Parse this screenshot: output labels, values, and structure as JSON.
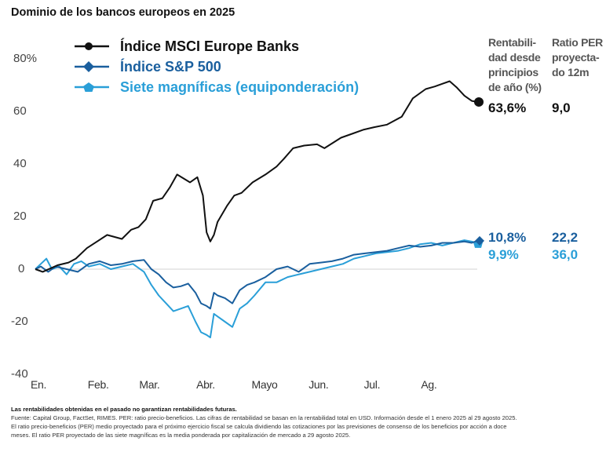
{
  "title": "Dominio de los bancos europeos en 2025",
  "colors": {
    "msci": "#111111",
    "sp500": "#1a5f9e",
    "mag7": "#2a9fd8",
    "zero_line": "#e2e2e2"
  },
  "legend": [
    {
      "label": "Índice MSCI Europe Banks",
      "marker": "circle-icon",
      "series": "msci"
    },
    {
      "label": "Índice S&P 500",
      "marker": "diamond-icon",
      "series": "sp500"
    },
    {
      "label": "Siete magníficas (equiponderación)",
      "marker": "pentagon-icon",
      "series": "mag7"
    }
  ],
  "table": {
    "col1_header": "Rentabili-\ndad desde\nprincipios\nde año (%)",
    "col2_header": "Ratio PER\nproyecta-\ndo 12m",
    "rows": [
      {
        "series": "msci",
        "ytd": "63,6%",
        "per": "9,0"
      },
      {
        "series": "sp500",
        "ytd": "10,8%",
        "per": "22,2"
      },
      {
        "series": "mag7",
        "ytd": "9,9%",
        "per": "36,0"
      }
    ]
  },
  "footnote": {
    "bold": "Las rentabilidades obtenidas en el pasado no garantizan rentabilidades futuras.",
    "line1": "Fuente: Capital Group, FactSet, RIMES. PER: ratio precio-beneficios. Las cifras de rentabilidad se basan en la rentabilidad total en USD. Información desde el 1 enero 2025 al 29 agosto 2025.",
    "line2": "El ratio precio-beneficios (PER) medio proyectado para el próximo ejercicio fiscal se calcula dividiendo las cotizaciones por las previsiones de consenso de los beneficios por acción a doce",
    "line3": "meses. El ratio PER proyectado de las siete magníficas es la media ponderada por capitalización de mercado a 29 agosto 2025."
  },
  "chart_data": {
    "type": "line",
    "title": "Dominio de los bancos europeos en 2025",
    "xlabel": "",
    "ylabel": "",
    "x_unit": "day of year 2025 (1 = 1 Jan, 241 = 29 Aug)",
    "xlim": [
      1,
      241
    ],
    "ylim": [
      -40,
      80
    ],
    "yticks": [
      80,
      60,
      40,
      20,
      0,
      -20,
      -40
    ],
    "ytick_labels": [
      "80%",
      "60",
      "40",
      "20",
      "0",
      "-20",
      "-40"
    ],
    "xticks": [
      1,
      32,
      60,
      91,
      121,
      152,
      182,
      213
    ],
    "xtick_labels": [
      "En.",
      "Feb.",
      "Mar.",
      "Abr.",
      "Mayo",
      "Jun.",
      "Jul.",
      "Ag."
    ],
    "grid": "zero-line only",
    "legend_position": "top-left",
    "series": [
      {
        "name": "Índice MSCI Europe Banks",
        "key": "msci",
        "end_value": 63.6,
        "x": [
          1,
          5,
          13,
          19,
          23,
          29,
          40,
          48,
          53,
          57,
          61,
          65,
          70,
          74,
          78,
          85,
          89,
          92,
          94,
          96,
          98,
          100,
          105,
          109,
          113,
          119,
          126,
          132,
          136,
          141,
          147,
          154,
          158,
          167,
          173,
          179,
          185,
          192,
          196,
          200,
          206,
          213,
          218,
          222,
          226,
          230,
          234,
          238,
          241
        ],
        "y": [
          0,
          -1,
          1.5,
          2.5,
          4,
          8,
          13,
          11.5,
          15,
          16,
          19,
          26,
          27,
          31,
          36,
          33,
          35,
          28,
          14,
          10.5,
          13,
          18,
          24,
          28,
          29,
          33,
          36,
          39,
          42,
          46,
          47,
          47.5,
          46,
          50,
          51.5,
          53,
          54,
          55,
          56.5,
          58,
          65,
          68.5,
          69.5,
          70.5,
          71.5,
          69,
          66,
          64,
          63.6
        ]
      },
      {
        "name": "Índice S&P 500",
        "key": "sp500",
        "end_value": 10.8,
        "x": [
          1,
          4,
          8,
          12,
          18,
          24,
          30,
          36,
          42,
          48,
          54,
          60,
          64,
          68,
          72,
          76,
          80,
          84,
          88,
          91,
          94,
          96,
          98,
          100,
          104,
          108,
          112,
          116,
          120,
          126,
          132,
          138,
          144,
          150,
          156,
          162,
          168,
          174,
          180,
          186,
          192,
          198,
          204,
          210,
          216,
          222,
          228,
          234,
          238,
          241
        ],
        "y": [
          0,
          1,
          -1,
          1,
          0,
          -1,
          2,
          3,
          1.5,
          2,
          3,
          3.5,
          0,
          -2,
          -5,
          -7,
          -6.5,
          -5.5,
          -9,
          -13,
          -14,
          -15,
          -9,
          -10,
          -11,
          -13,
          -8,
          -6,
          -5,
          -3,
          0,
          1,
          -1,
          2,
          2.5,
          3,
          4,
          5.5,
          6,
          6.5,
          7,
          8,
          9,
          8.5,
          9,
          10,
          10,
          10.5,
          10,
          10.8
        ]
      },
      {
        "name": "Siete magníficas (equiponderación)",
        "key": "mag7",
        "end_value": 9.9,
        "x": [
          1,
          4,
          7,
          10,
          14,
          18,
          22,
          26,
          30,
          36,
          42,
          48,
          54,
          60,
          64,
          68,
          72,
          76,
          80,
          84,
          88,
          91,
          94,
          96,
          98,
          100,
          104,
          108,
          112,
          116,
          120,
          126,
          132,
          138,
          144,
          150,
          156,
          162,
          168,
          174,
          180,
          186,
          192,
          198,
          204,
          210,
          216,
          222,
          228,
          234,
          238,
          241
        ],
        "y": [
          0,
          2,
          4,
          0,
          1,
          -2,
          2,
          3,
          1,
          2,
          0,
          1,
          2,
          -1,
          -6,
          -10,
          -13,
          -16,
          -15,
          -14,
          -20,
          -24,
          -25,
          -26,
          -17,
          -18,
          -20,
          -22,
          -15,
          -13,
          -10,
          -5,
          -5,
          -3,
          -2,
          -1,
          0,
          1,
          2,
          4,
          5,
          6,
          6.5,
          7,
          8,
          9.5,
          10,
          9,
          10,
          11,
          10.5,
          9.9
        ]
      }
    ]
  }
}
